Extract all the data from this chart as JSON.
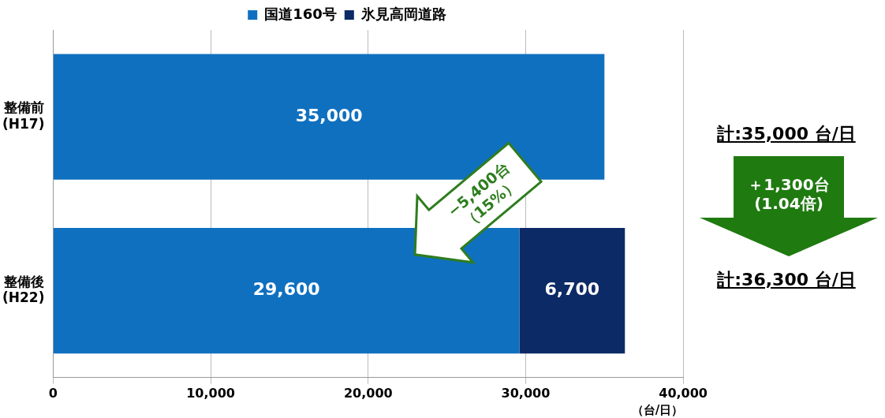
{
  "chart_data": {
    "type": "bar",
    "orientation": "horizontal",
    "stacked": true,
    "categories": [
      "整備前\n(H17)",
      "整備後\n(H22)"
    ],
    "series": [
      {
        "name": "国道160号",
        "color": "#0f70c0",
        "values": [
          35000,
          29600
        ],
        "value_labels": [
          "35,000",
          "29,600"
        ]
      },
      {
        "name": "氷見高岡道路",
        "color": "#0c2a66",
        "values": [
          null,
          6700
        ],
        "value_labels": [
          null,
          "6,700"
        ]
      }
    ],
    "xlim": [
      0,
      40000
    ],
    "xticks": [
      {
        "value": 0,
        "label": "0"
      },
      {
        "value": 10000,
        "label": "10,000"
      },
      {
        "value": 20000,
        "label": "20,000"
      },
      {
        "value": 30000,
        "label": "30,000"
      },
      {
        "value": 40000,
        "label": "40,000"
      }
    ],
    "xlabel": "（台/日）",
    "grid": "x",
    "legend": "top",
    "annotations": [
      "計:35,000 台/日",
      "＋1,300台\n(1.04倍)",
      "計:36,300 台/日",
      "−5,400台\n（15%）"
    ]
  }
}
